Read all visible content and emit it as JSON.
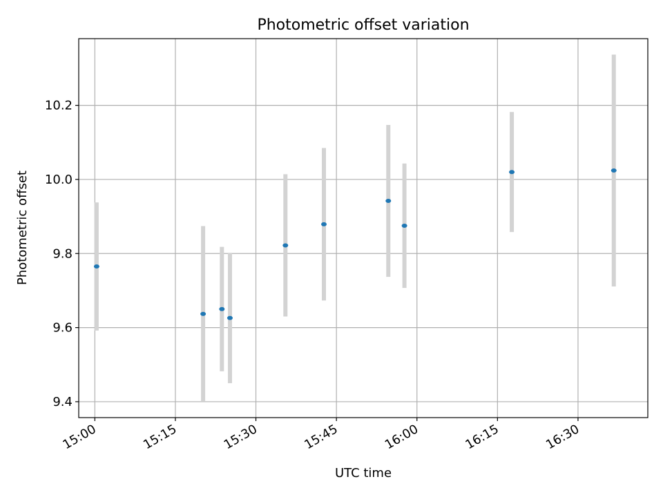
{
  "chart_data": {
    "type": "scatter",
    "title": "Photometric offset variation",
    "xlabel": "UTC time",
    "ylabel": "Photometric offset",
    "xlim": [
      "14:57:00",
      "16:43:00"
    ],
    "ylim": [
      9.357,
      10.38
    ],
    "x_ticks": [
      "15:00",
      "15:15",
      "15:30",
      "15:45",
      "16:00",
      "16:15",
      "16:30"
    ],
    "y_ticks": [
      "9.4",
      "9.6",
      "9.8",
      "10.0",
      "10.2"
    ],
    "grid": true,
    "legend": "none",
    "marker_color": "#1f77b4",
    "errorbar_color": "#d3d3d3",
    "series": [
      {
        "x": [
          "15:00:20",
          "15:20:10",
          "15:23:40",
          "15:25:10",
          "15:35:30",
          "15:42:40",
          "15:54:40",
          "15:57:40",
          "16:17:40",
          "16:36:40"
        ],
        "y": [
          9.765,
          9.637,
          9.65,
          9.626,
          9.822,
          9.879,
          9.942,
          9.875,
          10.02,
          10.024
        ],
        "yerr": [
          0.173,
          0.237,
          0.168,
          0.176,
          0.192,
          0.206,
          0.205,
          0.168,
          0.162,
          0.313
        ]
      }
    ]
  }
}
